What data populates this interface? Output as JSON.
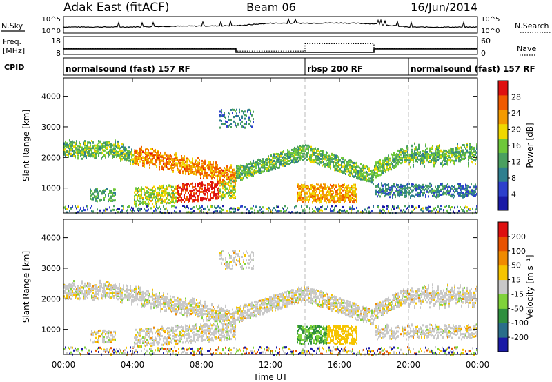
{
  "header": {
    "station": "Adak East (fitACF)",
    "beam": "Beam 06",
    "date": "16/Jun/2014"
  },
  "panel_labels": {
    "nsky": "N.Sky",
    "nsearch": "N.Search",
    "freq_line1": "Freq.",
    "freq_line2": "[MHz]",
    "nave": "Nave",
    "cpid": "CPID"
  },
  "chart_data": [
    {
      "type": "line",
      "name": "noise",
      "ylabel_left": "N.Sky",
      "ylabel_right": "N.Search",
      "yticks_left": [
        "10^5",
        "10^0"
      ],
      "yticks_right": [
        "10^5",
        "10^0"
      ],
      "x_hours": [
        0,
        2,
        4,
        6,
        8,
        10,
        12,
        14,
        16,
        18,
        20,
        22,
        24
      ],
      "sky_level": [
        0.35,
        0.35,
        0.35,
        0.4,
        0.42,
        0.44,
        0.62,
        0.62,
        0.64,
        0.58,
        0.34,
        0.34,
        0.34
      ]
    },
    {
      "type": "line",
      "name": "frequency_nave",
      "ylabel_left": "Freq. [MHz]",
      "ylabel_right": "Nave",
      "yticks_left": [
        "18",
        "8"
      ],
      "yticks_right": [
        "60",
        "0"
      ],
      "freq_steps": [
        {
          "start": 0,
          "end": 10,
          "mhz": 10.8
        },
        {
          "start": 10,
          "end": 18,
          "mhz": 8.0
        },
        {
          "start": 18,
          "end": 24,
          "mhz": 10.8
        }
      ],
      "nave_steps": [
        {
          "start": 0,
          "end": 10,
          "value": 0.3
        },
        {
          "start": 10,
          "end": 14,
          "value": 0.1
        },
        {
          "start": 14,
          "end": 18,
          "value": 0.7
        },
        {
          "start": 18,
          "end": 24,
          "value": 0.3
        }
      ]
    },
    {
      "type": "table",
      "name": "cpid",
      "segments": [
        {
          "start": 0,
          "end": 14,
          "label": "normalsound (fast) 157 RF"
        },
        {
          "start": 14,
          "end": 20,
          "label": "rbsp 200 RF"
        },
        {
          "start": 20,
          "end": 24,
          "label": "normalsound (fast) 157 RF"
        }
      ]
    },
    {
      "type": "heatmap",
      "name": "power",
      "ylabel": "Slant Range [km]",
      "yticks": [
        1000,
        2000,
        3000,
        4000
      ],
      "ylim": [
        180,
        4600
      ],
      "colorbar_label": "Power [dB]",
      "colorbar_ticks": [
        "28",
        "24",
        "20",
        "16",
        "12",
        "8",
        "4"
      ],
      "colors": [
        "#1a1aa6",
        "#2d40cc",
        "#2e7f8f",
        "#4aa060",
        "#6fc83a",
        "#f0d800",
        "#f39a00",
        "#ef5a00",
        "#de1010"
      ]
    },
    {
      "type": "heatmap",
      "name": "velocity",
      "ylabel": "Slant Range [km]",
      "yticks": [
        1000,
        2000,
        3000,
        4000
      ],
      "ylim": [
        180,
        4600
      ],
      "colorbar_label": "Velocity [m s⁻¹]",
      "colorbar_ticks": [
        "200",
        "100",
        "50",
        "15",
        "-15",
        "-50",
        "-100",
        "-200"
      ],
      "colors": [
        "#1a1aa6",
        "#2a6e8a",
        "#2f8f3f",
        "#7fd23a",
        "#c8c8c8",
        "#f6c400",
        "#f08a00",
        "#e85200",
        "#de1010"
      ],
      "xlabel": "Time UT",
      "xticks": [
        "00:00",
        "04:00",
        "08:00",
        "12:00",
        "16:00",
        "20:00",
        "00:00"
      ]
    }
  ]
}
